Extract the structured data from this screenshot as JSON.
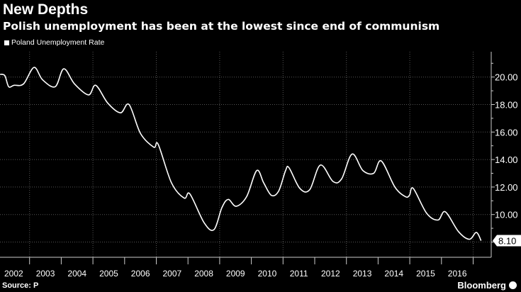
{
  "chart_data": {
    "type": "line",
    "title": "New Depths",
    "subtitle": "Polish unemployment has been at the lowest since end of communism",
    "legend": [
      "Poland Unemployment Rate"
    ],
    "legend_position": "top-left",
    "xlabel": "",
    "ylabel": "",
    "x_tick_labels": [
      "2002",
      "2003",
      "2004",
      "2005",
      "2006",
      "2007",
      "2008",
      "2009",
      "2010",
      "2011",
      "2012",
      "2013",
      "2014",
      "2015",
      "2016"
    ],
    "y_tick_labels": [
      "20.00",
      "18.00",
      "16.00",
      "14.00",
      "12.00",
      "10.00"
    ],
    "y_ticks": [
      20,
      18,
      16,
      14,
      12,
      10,
      8
    ],
    "ylim": [
      7.4,
      21.5
    ],
    "xlim": [
      2002.0,
      2017.5
    ],
    "grid": true,
    "last_value_label": "8.10",
    "line_color": "#ffffff",
    "series": [
      {
        "name": "Poland Unemployment Rate",
        "points": [
          [
            2002.07,
            20.2
          ],
          [
            2002.22,
            20.1
          ],
          [
            2002.34,
            19.3
          ],
          [
            2002.51,
            19.4
          ],
          [
            2002.81,
            19.5
          ],
          [
            2003.14,
            20.7
          ],
          [
            2003.41,
            19.8
          ],
          [
            2003.81,
            19.3
          ],
          [
            2004.08,
            20.6
          ],
          [
            2004.42,
            19.5
          ],
          [
            2004.86,
            18.7
          ],
          [
            2005.09,
            19.4
          ],
          [
            2005.47,
            18.1
          ],
          [
            2005.87,
            17.4
          ],
          [
            2006.14,
            18.0
          ],
          [
            2006.5,
            15.9
          ],
          [
            2006.92,
            14.9
          ],
          [
            2007.06,
            15.1
          ],
          [
            2007.48,
            12.3
          ],
          [
            2007.88,
            11.2
          ],
          [
            2008.06,
            11.5
          ],
          [
            2008.51,
            9.4
          ],
          [
            2008.82,
            8.9
          ],
          [
            2009.07,
            10.5
          ],
          [
            2009.27,
            11.1
          ],
          [
            2009.52,
            10.6
          ],
          [
            2009.85,
            11.3
          ],
          [
            2010.17,
            13.2
          ],
          [
            2010.39,
            12.3
          ],
          [
            2010.63,
            11.4
          ],
          [
            2010.86,
            11.7
          ],
          [
            2011.08,
            13.2
          ],
          [
            2011.19,
            13.4
          ],
          [
            2011.53,
            11.9
          ],
          [
            2011.84,
            11.8
          ],
          [
            2012.18,
            13.6
          ],
          [
            2012.58,
            12.4
          ],
          [
            2012.85,
            12.6
          ],
          [
            2013.18,
            14.4
          ],
          [
            2013.52,
            13.2
          ],
          [
            2013.86,
            13.0
          ],
          [
            2014.1,
            13.9
          ],
          [
            2014.53,
            12.0
          ],
          [
            2014.86,
            11.3
          ],
          [
            2014.99,
            11.4
          ],
          [
            2015.11,
            11.9
          ],
          [
            2015.53,
            10.1
          ],
          [
            2015.89,
            9.6
          ],
          [
            2016.12,
            10.2
          ],
          [
            2016.54,
            8.75
          ],
          [
            2016.88,
            8.2
          ],
          [
            2017.1,
            8.7
          ],
          [
            2017.25,
            8.1
          ]
        ]
      }
    ]
  },
  "footer": {
    "source": "Source: P",
    "brand": "Bloomberg"
  }
}
